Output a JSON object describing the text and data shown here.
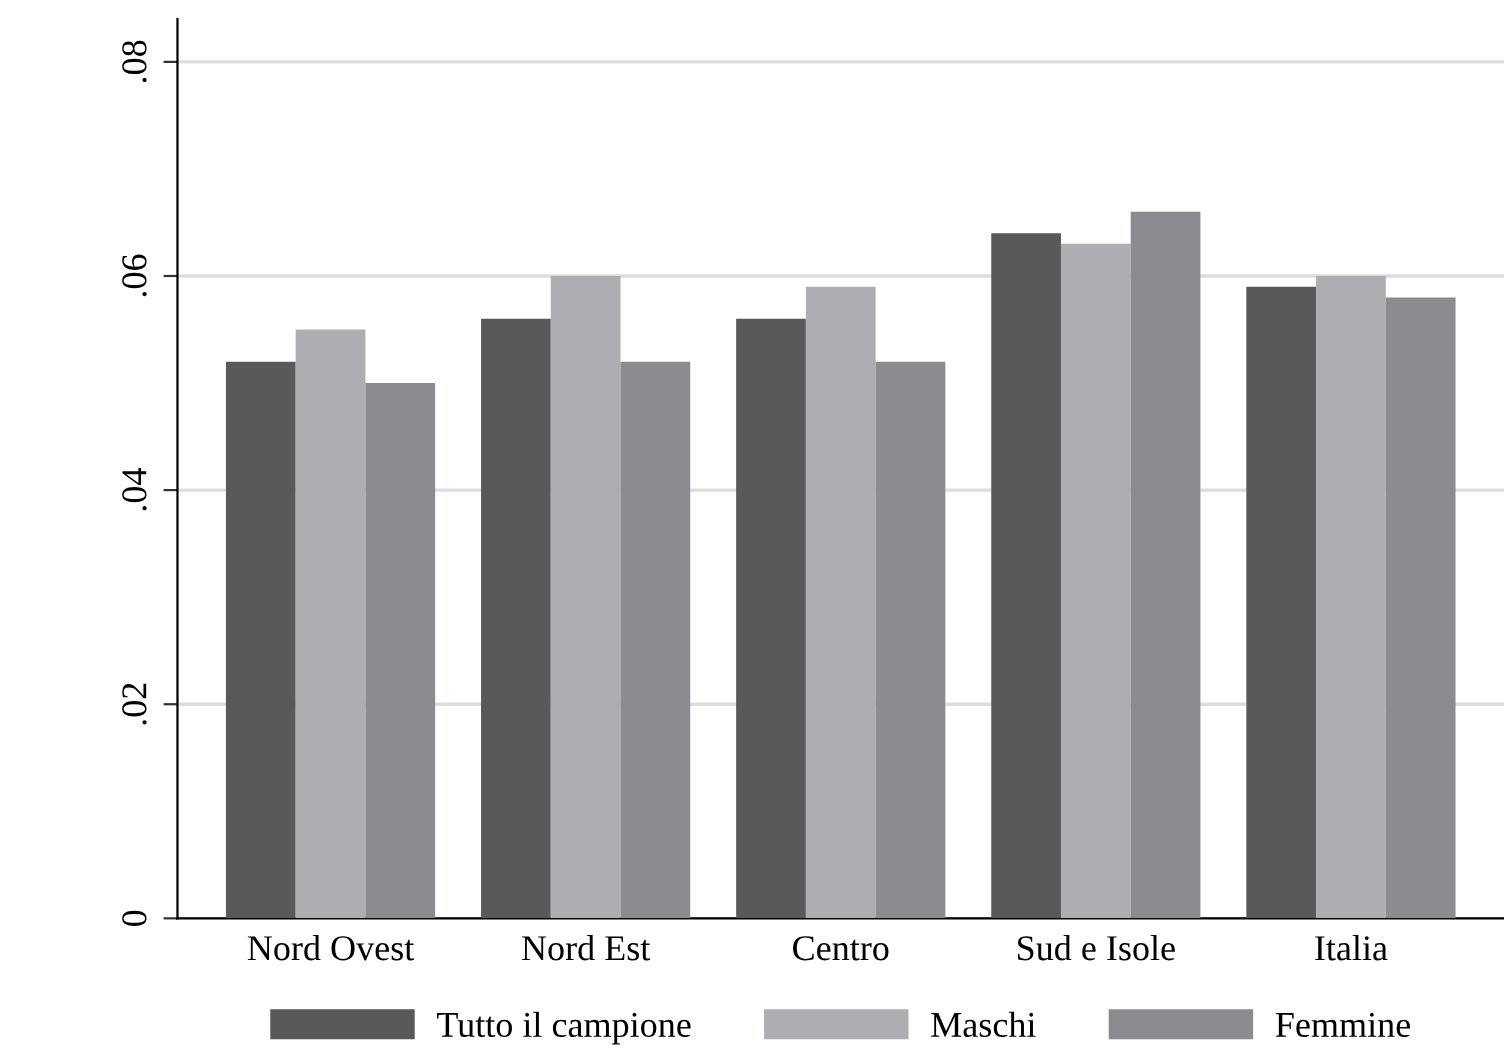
{
  "chart_data": {
    "type": "bar",
    "categories": [
      "Nord Ovest",
      "Nord Est",
      "Centro",
      "Sud e Isole",
      "Italia"
    ],
    "series": [
      {
        "name": "Tutto il campione",
        "color": "#58595b",
        "values": [
          0.052,
          0.056,
          0.056,
          0.064,
          0.059
        ]
      },
      {
        "name": "Maschi",
        "color": "#adaeb2",
        "values": [
          0.055,
          0.06,
          0.059,
          0.063,
          0.06
        ]
      },
      {
        "name": "Femmine",
        "color": "#8b8c90",
        "values": [
          0.05,
          0.052,
          0.052,
          0.066,
          0.058
        ]
      }
    ],
    "ylim": [
      0,
      0.084
    ],
    "yticks": [
      {
        "value": 0,
        "label": "0"
      },
      {
        "value": 0.02,
        "label": ".02"
      },
      {
        "value": 0.04,
        "label": ".04"
      },
      {
        "value": 0.06,
        "label": ".06"
      },
      {
        "value": 0.08,
        "label": ".08"
      }
    ],
    "grid": "y",
    "legend": "bottom"
  }
}
